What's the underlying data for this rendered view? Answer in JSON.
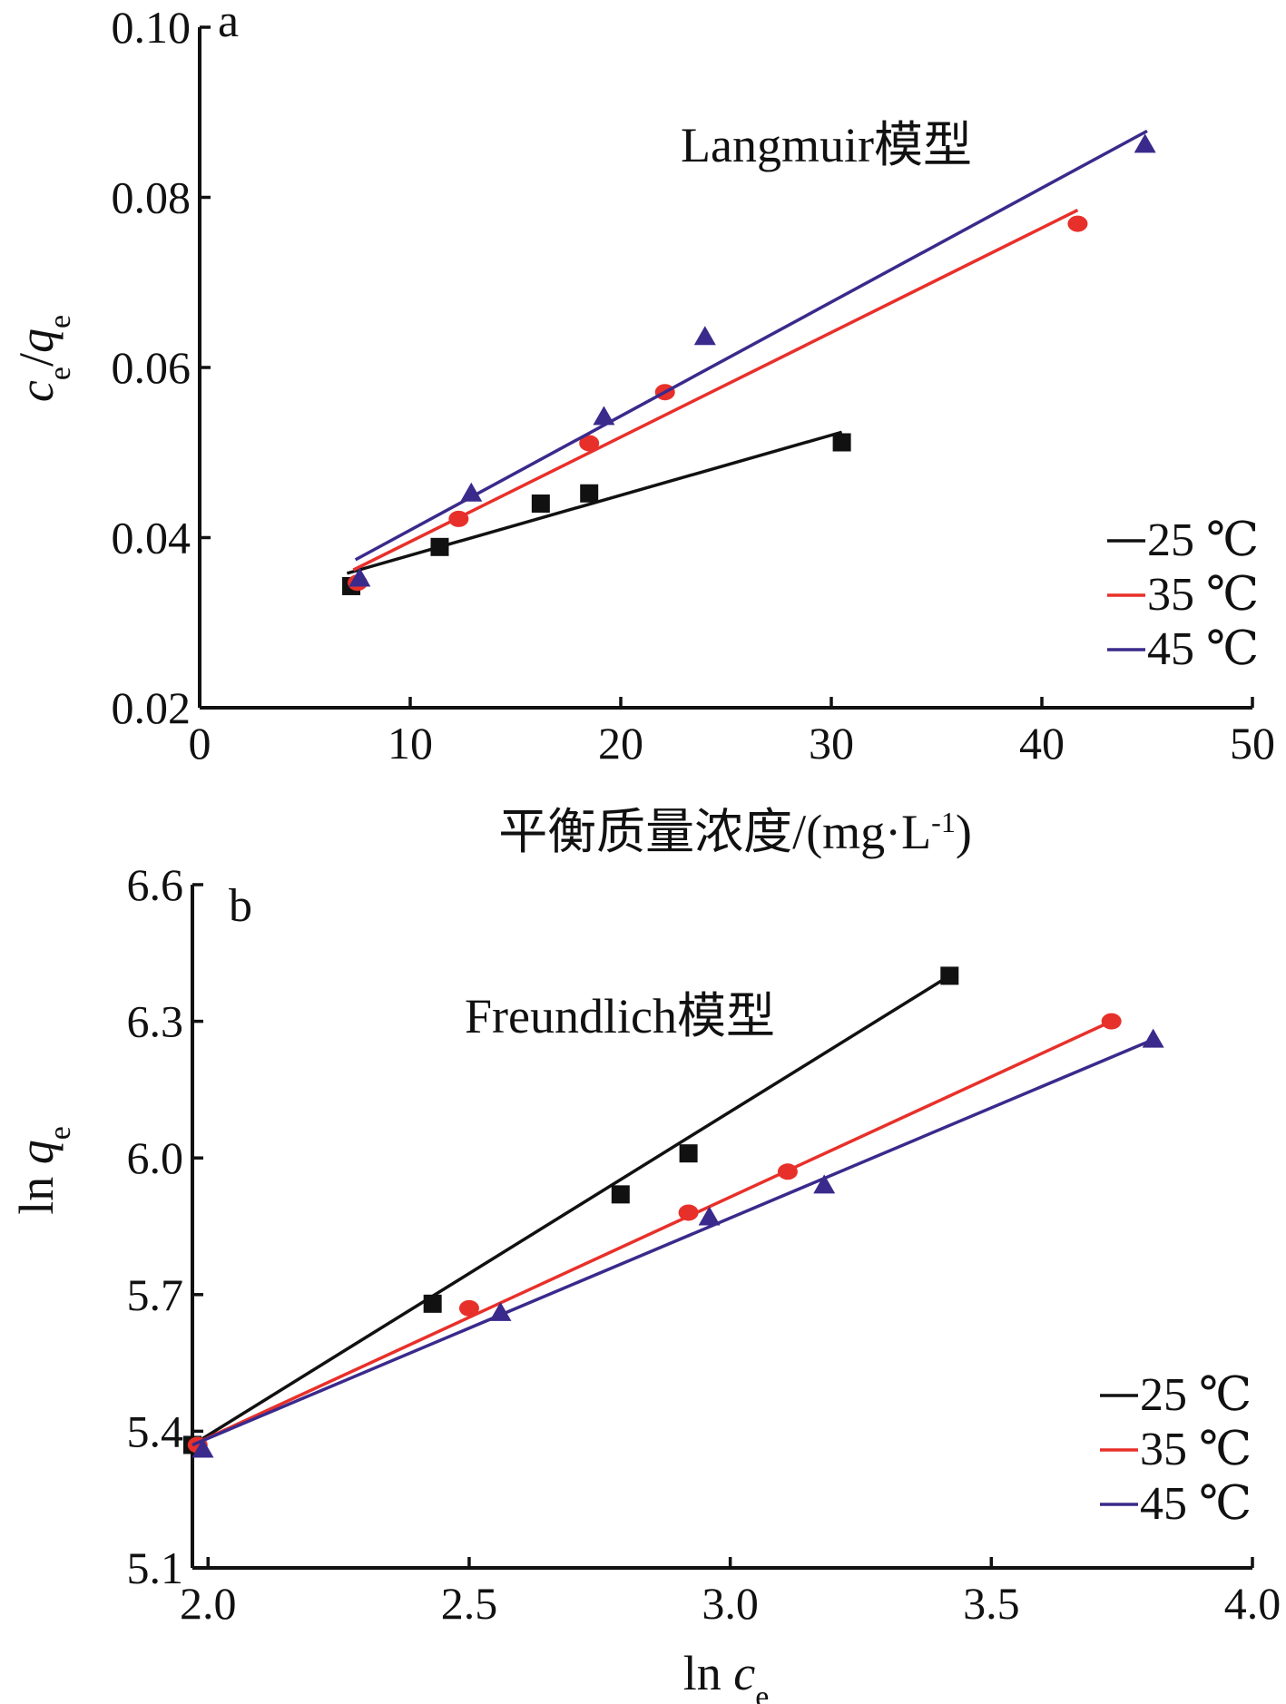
{
  "chart_data": [
    {
      "panel": "a",
      "type": "scatter",
      "annotation": "Langmuir模型",
      "xlabel": "平衡质量浓度/(mg·L-1)",
      "ylabel": "ce/qe",
      "xlim": [
        0,
        50
      ],
      "ylim": [
        0.02,
        0.1
      ],
      "xticks": [
        0,
        10,
        20,
        30,
        40,
        50
      ],
      "xtick_labels": [
        "0",
        "10",
        "20",
        "30",
        "40",
        "50"
      ],
      "yticks": [
        0.02,
        0.04,
        0.06,
        0.08,
        0.1
      ],
      "ytick_labels": [
        "0.02",
        "0.04",
        "0.06",
        "0.08",
        "0.10"
      ],
      "grid": false,
      "legend_position": "bottom-right",
      "series": [
        {
          "name": "25 ℃",
          "color": "#111111",
          "marker": "square",
          "points": [
            [
              7.2,
              0.0343
            ],
            [
              11.4,
              0.0389
            ],
            [
              16.2,
              0.044
            ],
            [
              18.5,
              0.0452
            ],
            [
              30.5,
              0.0512
            ]
          ],
          "fit": [
            [
              7.0,
              0.0358
            ],
            [
              30.5,
              0.0524
            ]
          ]
        },
        {
          "name": "35 ℃",
          "color": "#e8302a",
          "marker": "circle",
          "points": [
            [
              7.5,
              0.0347
            ],
            [
              12.3,
              0.0422
            ],
            [
              18.5,
              0.0511
            ],
            [
              22.1,
              0.0571
            ],
            [
              41.7,
              0.0769
            ]
          ],
          "fit": [
            [
              7.3,
              0.0362
            ],
            [
              41.7,
              0.0785
            ]
          ]
        },
        {
          "name": "45 ℃",
          "color": "#3a2a8c",
          "marker": "triangle",
          "points": [
            [
              7.6,
              0.0352
            ],
            [
              12.9,
              0.0452
            ],
            [
              19.2,
              0.0542
            ],
            [
              24.0,
              0.0636
            ],
            [
              44.9,
              0.0862
            ]
          ],
          "fit": [
            [
              7.4,
              0.0374
            ],
            [
              45.0,
              0.0878
            ]
          ]
        }
      ]
    },
    {
      "panel": "b",
      "type": "scatter",
      "annotation": "Freundlich模型",
      "xlabel": "ln ce",
      "ylabel": "ln qe",
      "xlim": [
        1.97,
        4.0
      ],
      "ylim": [
        5.1,
        6.6
      ],
      "xticks": [
        2.0,
        2.5,
        3.0,
        3.5,
        4.0
      ],
      "xtick_labels": [
        "2.0",
        "2.5",
        "3.0",
        "3.5",
        "4.0"
      ],
      "yticks": [
        5.1,
        5.4,
        5.7,
        6.0,
        6.3,
        6.6
      ],
      "ytick_labels": [
        "5.1",
        "5.4",
        "5.7",
        "6.0",
        "6.3",
        "6.6"
      ],
      "grid": false,
      "legend_position": "bottom-right",
      "series": [
        {
          "name": "25 ℃",
          "color": "#111111",
          "marker": "square",
          "points": [
            [
              1.97,
              5.37
            ],
            [
              2.43,
              5.68
            ],
            [
              2.79,
              5.92
            ],
            [
              2.92,
              6.01
            ],
            [
              3.42,
              6.4
            ]
          ],
          "fit": [
            [
              1.97,
              5.37
            ],
            [
              3.42,
              6.4
            ]
          ]
        },
        {
          "name": "35 ℃",
          "color": "#e8302a",
          "marker": "circle",
          "points": [
            [
              1.98,
              5.37
            ],
            [
              2.5,
              5.67
            ],
            [
              2.92,
              5.88
            ],
            [
              3.11,
              5.97
            ],
            [
              3.73,
              6.3
            ]
          ],
          "fit": [
            [
              1.97,
              5.37
            ],
            [
              3.73,
              6.3
            ]
          ]
        },
        {
          "name": "45 ℃",
          "color": "#3a2a8c",
          "marker": "triangle",
          "points": [
            [
              1.99,
              5.36
            ],
            [
              2.56,
              5.66
            ],
            [
              2.96,
              5.87
            ],
            [
              3.18,
              5.94
            ],
            [
              3.81,
              6.26
            ]
          ],
          "fit": [
            [
              1.97,
              5.37
            ],
            [
              3.81,
              6.26
            ]
          ]
        }
      ]
    }
  ]
}
